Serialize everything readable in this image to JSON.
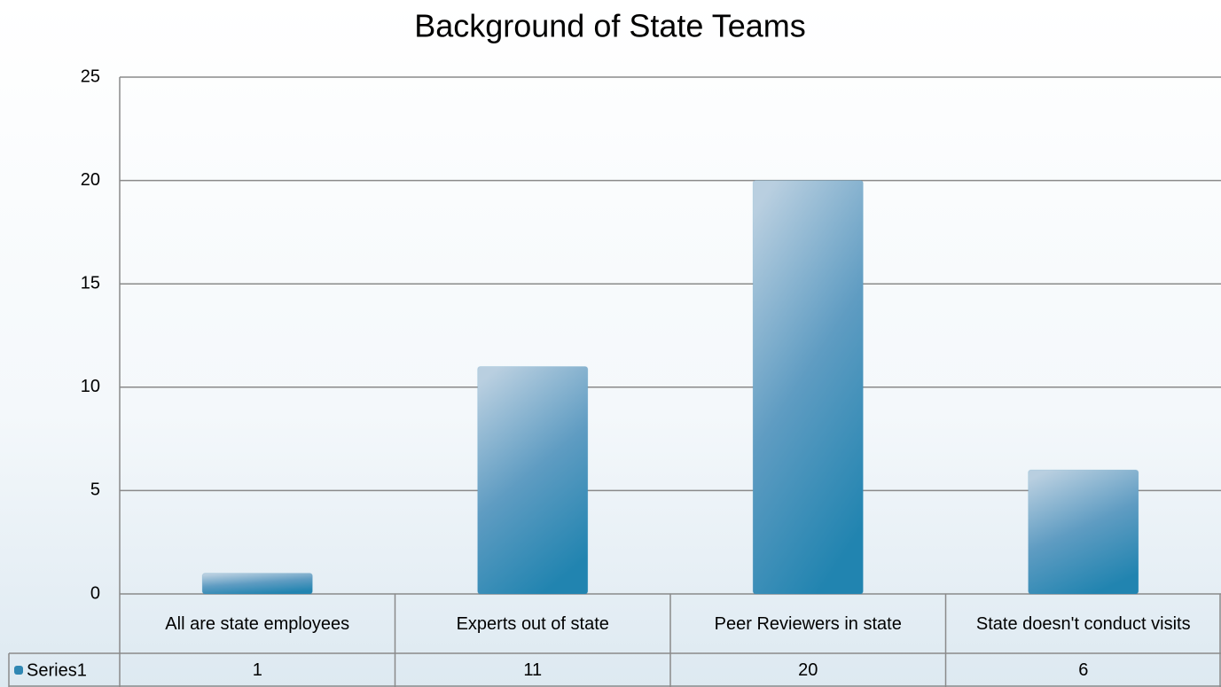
{
  "chart_data": {
    "type": "bar",
    "title": "Background of State Teams",
    "categories": [
      "All are state employees",
      "Experts out of state",
      "Peer Reviewers in state",
      "State doesn't conduct visits"
    ],
    "series": [
      {
        "name": "Series1",
        "color": "#2f87b3",
        "values": [
          1,
          11,
          20,
          6
        ]
      }
    ],
    "ylim": [
      0,
      25
    ],
    "yticks": [
      0,
      5,
      10,
      15,
      20,
      25
    ],
    "grid": true,
    "legend": "data-table"
  }
}
